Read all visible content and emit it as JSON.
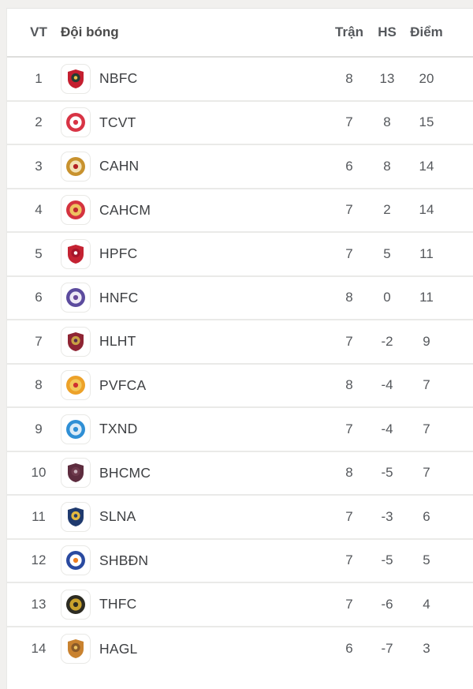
{
  "page": {
    "background_color": "#f1f0ee",
    "card_color": "#ffffff",
    "divider_color": "#eaeae8",
    "header_divider_color": "#dededc",
    "header_text_color": "#4a4a4a",
    "body_text_color": "#55585c",
    "team_text_color": "#3d3f42"
  },
  "table": {
    "columns": {
      "position": "VT",
      "team": "Đội bóng",
      "played": "Trận",
      "goal_difference": "HS",
      "points": "Điểm"
    },
    "rows": [
      {
        "position": 1,
        "team": "NBFC",
        "played": 8,
        "goal_difference": 13,
        "points": 20,
        "logo": {
          "icon": "nbfc-crest-icon",
          "shape": "shield",
          "colors": [
            "#c41e2f",
            "#243b33",
            "#e8c14a"
          ]
        }
      },
      {
        "position": 2,
        "team": "TCVT",
        "played": 7,
        "goal_difference": 8,
        "points": 15,
        "logo": {
          "icon": "tcvt-crest-icon",
          "shape": "circle",
          "colors": [
            "#d83445",
            "#ffffff",
            "#d83445"
          ]
        }
      },
      {
        "position": 3,
        "team": "CAHN",
        "played": 6,
        "goal_difference": 8,
        "points": 14,
        "logo": {
          "icon": "cahn-crest-icon",
          "shape": "circle",
          "colors": [
            "#c8922e",
            "#f3e2b5",
            "#b32024"
          ]
        }
      },
      {
        "position": 4,
        "team": "CAHCM",
        "played": 7,
        "goal_difference": 2,
        "points": 14,
        "logo": {
          "icon": "cahcm-crest-icon",
          "shape": "circle",
          "colors": [
            "#d4333f",
            "#eec361",
            "#c02830"
          ]
        }
      },
      {
        "position": 5,
        "team": "HPFC",
        "played": 7,
        "goal_difference": 5,
        "points": 11,
        "logo": {
          "icon": "hpfc-crest-icon",
          "shape": "shield",
          "colors": [
            "#c42232",
            "#a6152a",
            "#ffffff"
          ]
        }
      },
      {
        "position": 6,
        "team": "HNFC",
        "played": 8,
        "goal_difference": 0,
        "points": 11,
        "logo": {
          "icon": "hnfc-crest-icon",
          "shape": "circle",
          "colors": [
            "#5c4b9e",
            "#efeaf6",
            "#6a4a9a"
          ]
        }
      },
      {
        "position": 7,
        "team": "HLHT",
        "played": 7,
        "goal_difference": -2,
        "points": 9,
        "logo": {
          "icon": "hlht-crest-icon",
          "shape": "shield",
          "colors": [
            "#8e2433",
            "#c8a044",
            "#5a2a50"
          ]
        }
      },
      {
        "position": 8,
        "team": "PVFCA",
        "played": 8,
        "goal_difference": -4,
        "points": 7,
        "logo": {
          "icon": "pvfca-crest-icon",
          "shape": "circle",
          "colors": [
            "#eda229",
            "#f3c95c",
            "#cf3030"
          ]
        }
      },
      {
        "position": 9,
        "team": "TXND",
        "played": 7,
        "goal_difference": -4,
        "points": 7,
        "logo": {
          "icon": "txnd-crest-icon",
          "shape": "circle",
          "colors": [
            "#2f8fd5",
            "#dcebf7",
            "#2f8fd5"
          ]
        }
      },
      {
        "position": 10,
        "team": "BHCMC",
        "played": 8,
        "goal_difference": -5,
        "points": 7,
        "logo": {
          "icon": "bhcmc-crest-icon",
          "shape": "shield",
          "colors": [
            "#5d2c3e",
            "#6e3a4c",
            "#c9aeb8"
          ]
        }
      },
      {
        "position": 11,
        "team": "SLNA",
        "played": 7,
        "goal_difference": -3,
        "points": 6,
        "logo": {
          "icon": "slna-crest-icon",
          "shape": "shield",
          "colors": [
            "#1f3a6e",
            "#e4b83f",
            "#243b6b"
          ]
        }
      },
      {
        "position": 12,
        "team": "SHBĐN",
        "played": 7,
        "goal_difference": -5,
        "points": 5,
        "logo": {
          "icon": "shbdn-crest-icon",
          "shape": "circle",
          "colors": [
            "#2a4aa0",
            "#ffffff",
            "#ef7f22"
          ]
        }
      },
      {
        "position": 13,
        "team": "THFC",
        "played": 7,
        "goal_difference": -6,
        "points": 4,
        "logo": {
          "icon": "thfc-crest-icon",
          "shape": "circle",
          "colors": [
            "#2c2b22",
            "#c9a22c",
            "#2c2b22"
          ]
        }
      },
      {
        "position": 14,
        "team": "HAGL",
        "played": 6,
        "goal_difference": -7,
        "points": 3,
        "logo": {
          "icon": "hagl-crest-icon",
          "shape": "shield",
          "colors": [
            "#c9822f",
            "#8a5a28",
            "#eec361"
          ]
        }
      }
    ]
  }
}
